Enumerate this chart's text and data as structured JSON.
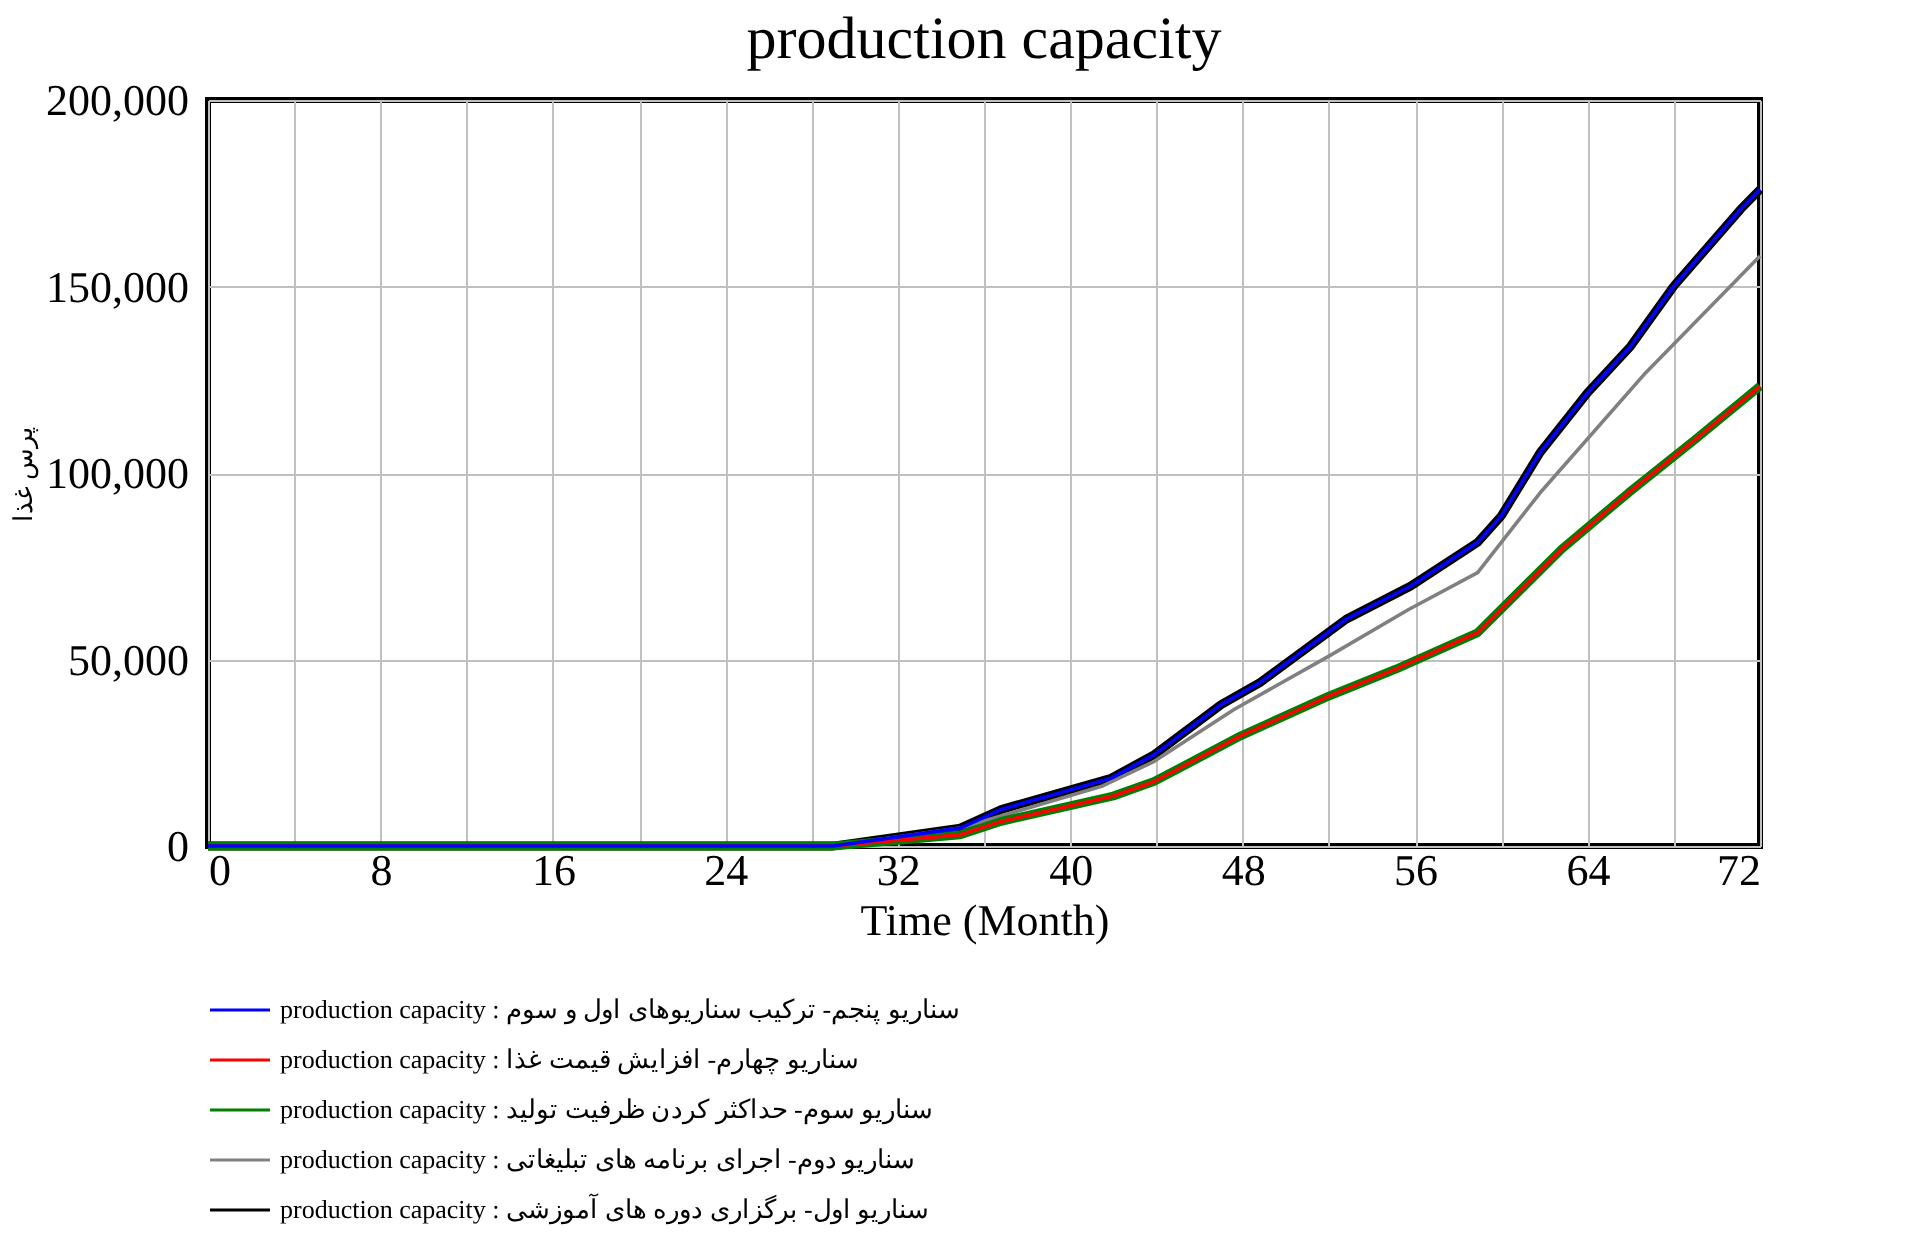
{
  "chart_data": {
    "type": "line",
    "title": "production capacity",
    "xlabel": "Time (Month)",
    "ylabel": "پرس غذا",
    "xlim": [
      0,
      72
    ],
    "xticks": [
      0,
      {
        "value": 4,
        "label": null
      },
      8,
      {
        "value": 12,
        "label": null
      },
      16,
      {
        "value": 20,
        "label": null
      },
      24,
      {
        "value": 28,
        "label": null
      },
      32,
      {
        "value": 36,
        "label": null
      },
      40,
      {
        "value": 44,
        "label": null
      },
      48,
      {
        "value": 52,
        "label": null
      },
      56,
      {
        "value": 60,
        "label": null
      },
      64,
      {
        "value": 68,
        "label": null
      },
      72
    ],
    "ylim": [
      0,
      200000
    ],
    "yticks": [
      {
        "value": 0,
        "label": "0"
      },
      {
        "value": 50000,
        "label": "50,000"
      },
      {
        "value": 100000,
        "label": "100,000"
      },
      {
        "value": 150000,
        "label": "150,000"
      },
      {
        "value": 200000,
        "label": "200,000"
      }
    ],
    "grid": true,
    "legend": "bottom",
    "series": [
      {
        "name": "production capacity : سناریو پنجم- ترکیب سناریوهای اول و سوم",
        "color": "#0000ff",
        "x": [
          0,
          29,
          34.9,
          36.8,
          39.9,
          41.9,
          43.9,
          47,
          48.8,
          52.8,
          55.8,
          58.9,
          60,
          61.8,
          64,
          66,
          68,
          71.1,
          72
        ],
        "values": [
          0,
          0,
          4800,
          9800,
          14900,
          18200,
          24500,
          37900,
          43800,
          60800,
          69700,
          81400,
          88500,
          105500,
          121500,
          134000,
          150100,
          170700,
          176000
        ]
      },
      {
        "name": "production capacity : سناریو چهارم- افزایش قیمت غذا",
        "color": "#ff0000",
        "x": [
          0,
          29,
          34.9,
          36.8,
          42,
          43.9,
          47.9,
          52,
          55.1,
          58.9,
          62.8,
          65.9,
          69,
          72
        ],
        "values": [
          0,
          0,
          3000,
          6600,
          13400,
          17300,
          29500,
          40200,
          47400,
          57200,
          79600,
          94700,
          109000,
          123300
        ]
      },
      {
        "name": "production capacity : سناریو سوم- حداکثر کردن ظرفیت تولید",
        "color": "#008000",
        "x": [
          0,
          29,
          34.9,
          36.8,
          42,
          43.9,
          47.9,
          52,
          55.1,
          58.9,
          62.8,
          65.9,
          69,
          72
        ],
        "values": [
          0,
          0,
          3000,
          6600,
          13400,
          17300,
          29500,
          40200,
          47400,
          57200,
          79600,
          94700,
          109000,
          123300
        ]
      },
      {
        "name": "production capacity : سناریو دوم- اجرای برنامه های تبلیغاتی",
        "color": "#808080",
        "x": [
          0,
          29,
          34.9,
          41.5,
          43.9,
          47.6,
          52,
          55.7,
          58.9,
          61.8,
          66.7,
          72
        ],
        "values": [
          0,
          0,
          4800,
          16100,
          22700,
          36600,
          50900,
          63400,
          73300,
          94700,
          126900,
          158200
        ]
      },
      {
        "name": "production capacity : سناریو اول- برگزاری دوره های آموزشی",
        "color": "#000000",
        "x": [
          0,
          29,
          34.9,
          36.8,
          39.9,
          41.9,
          43.9,
          47,
          48.8,
          52.8,
          55.8,
          58.9,
          60,
          61.8,
          64,
          66,
          68,
          71.1,
          72
        ],
        "values": [
          0,
          0,
          4800,
          9800,
          14900,
          18200,
          24500,
          37900,
          43800,
          60800,
          69700,
          81400,
          88500,
          105500,
          121500,
          134000,
          150100,
          170700,
          176000
        ]
      }
    ]
  }
}
